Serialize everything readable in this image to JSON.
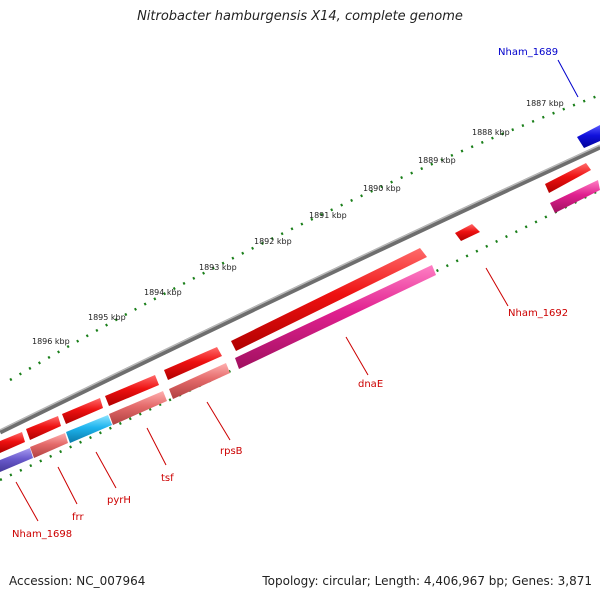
{
  "title": "Nitrobacter hamburgensis X14, complete genome",
  "footer": {
    "accession": "Accession: NC_007964",
    "summary": "Topology: circular; Length: 4,406,967 bp; Genes: 3,871"
  },
  "colors": {
    "backbone": "#808080",
    "tick": "#1a7f1a",
    "red": "#ee1111",
    "magenta": "#e0208f",
    "salmon": "#e46a6a",
    "cyan": "#1eb4ee",
    "blue": "#1111dd",
    "purple": "#6a5acd",
    "label_red": "#cc0000",
    "label_blue": "#0000cc"
  },
  "ruler": {
    "labels": [
      "1887 kbp",
      "1888 kbp",
      "1889 kbp",
      "1890 kbp",
      "1891 kbp",
      "1892 kbp",
      "1893 kbp",
      "1894 kbp",
      "1895 kbp",
      "1896 kbp"
    ]
  },
  "gene_labels": [
    "Nham_1689",
    "Nham_1692",
    "dnaE",
    "rpsB",
    "tsf",
    "pyrH",
    "frr",
    "Nham_1698"
  ]
}
